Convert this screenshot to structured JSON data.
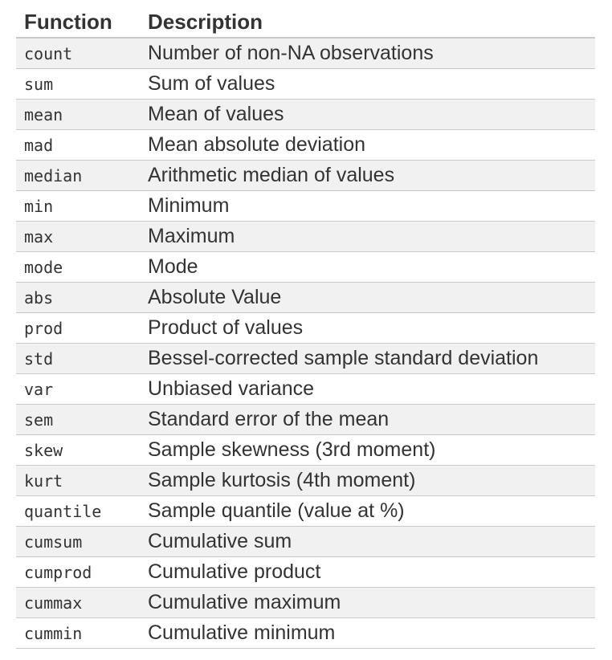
{
  "table": {
    "headers": [
      "Function",
      "Description"
    ],
    "rows": [
      {
        "function": "count",
        "description": "Number of non-NA observations"
      },
      {
        "function": "sum",
        "description": "Sum of values"
      },
      {
        "function": "mean",
        "description": "Mean of values"
      },
      {
        "function": "mad",
        "description": "Mean absolute deviation"
      },
      {
        "function": "median",
        "description": "Arithmetic median of values"
      },
      {
        "function": "min",
        "description": "Minimum"
      },
      {
        "function": "max",
        "description": "Maximum"
      },
      {
        "function": "mode",
        "description": "Mode"
      },
      {
        "function": "abs",
        "description": "Absolute Value"
      },
      {
        "function": "prod",
        "description": "Product of values"
      },
      {
        "function": "std",
        "description": "Bessel-corrected sample standard deviation"
      },
      {
        "function": "var",
        "description": "Unbiased variance"
      },
      {
        "function": "sem",
        "description": "Standard error of the mean"
      },
      {
        "function": "skew",
        "description": "Sample skewness (3rd moment)"
      },
      {
        "function": "kurt",
        "description": "Sample kurtosis (4th moment)"
      },
      {
        "function": "quantile",
        "description": "Sample quantile (value at %)"
      },
      {
        "function": "cumsum",
        "description": "Cumulative sum"
      },
      {
        "function": "cumprod",
        "description": "Cumulative product"
      },
      {
        "function": "cummax",
        "description": "Cumulative maximum"
      },
      {
        "function": "cummin",
        "description": "Cumulative minimum"
      }
    ]
  }
}
